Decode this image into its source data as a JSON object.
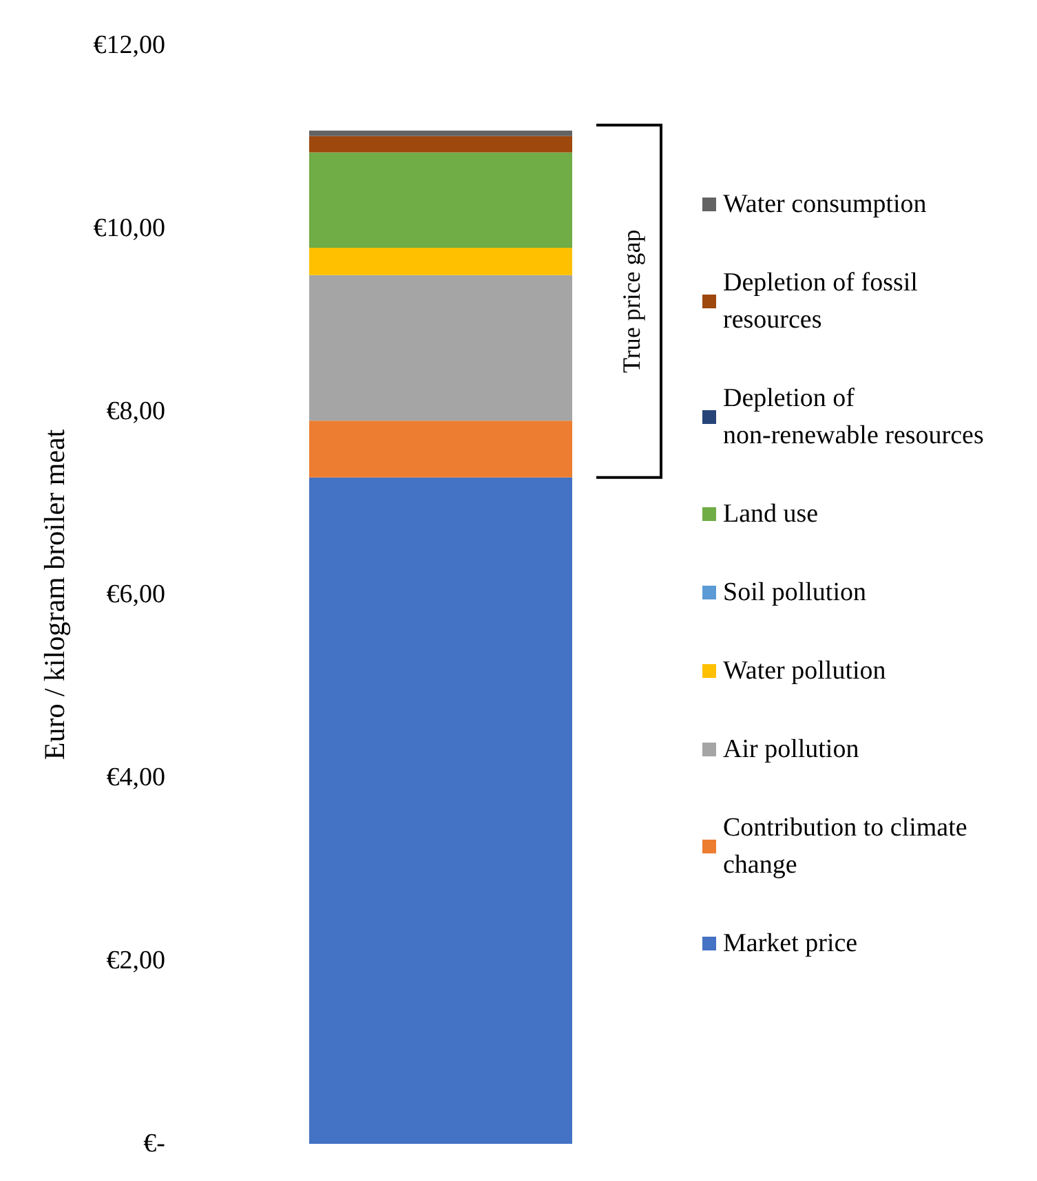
{
  "chart_data": {
    "type": "bar",
    "stacked": true,
    "categories": [
      null
    ],
    "ylabel": "Euro / kilogram broiler meat",
    "ylim": [
      0,
      12
    ],
    "yticks": [
      {
        "value": 0,
        "label": "€-"
      },
      {
        "value": 2,
        "label": "€2,00"
      },
      {
        "value": 4,
        "label": "€4,00"
      },
      {
        "value": 6,
        "label": "€6,00"
      },
      {
        "value": 8,
        "label": "€8,00"
      },
      {
        "value": 10,
        "label": "€10,00"
      },
      {
        "value": 12,
        "label": "€12,00"
      }
    ],
    "grid": false,
    "legend": "right",
    "annotations": [
      "True price gap"
    ],
    "series": [
      {
        "name": "Market price",
        "color": "#4472c4",
        "values": [
          7.28
        ]
      },
      {
        "name": "Contribution to climate change",
        "color": "#ed7d31",
        "values": [
          0.62
        ]
      },
      {
        "name": "Air pollution",
        "color": "#a5a5a5",
        "values": [
          1.59
        ]
      },
      {
        "name": "Water pollution",
        "color": "#ffc000",
        "values": [
          0.3
        ]
      },
      {
        "name": "Soil pollution",
        "color": "#5b9bd5",
        "values": [
          0
        ]
      },
      {
        "name": "Land use",
        "color": "#70ad47",
        "values": [
          1.04
        ]
      },
      {
        "name": "Depletion of non-renewable resources",
        "color": "#264478",
        "values": [
          0
        ]
      },
      {
        "name": "Depletion of fossil resources",
        "color": "#9e480e",
        "values": [
          0.18
        ]
      },
      {
        "name": "Water consumption",
        "color": "#636363",
        "values": [
          0.06
        ]
      }
    ]
  }
}
